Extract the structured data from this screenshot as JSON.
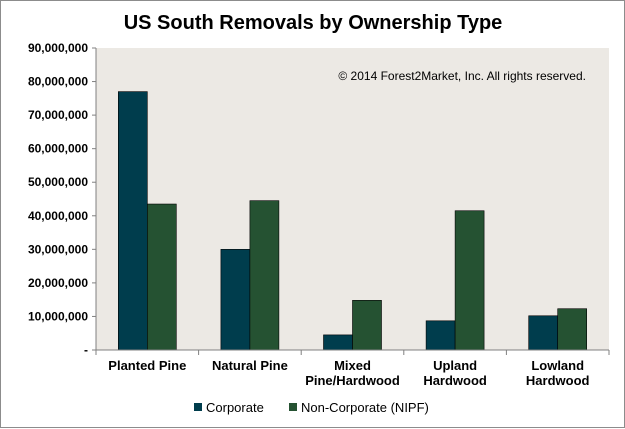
{
  "chart_data": {
    "type": "bar",
    "title": "US South Removals by Ownership Type",
    "annotation": "© 2014 Forest2Market, Inc. All rights reserved.",
    "categories": [
      [
        "Planted Pine"
      ],
      [
        "Natural Pine"
      ],
      [
        "Mixed",
        "Pine/Hardwood"
      ],
      [
        "Upland",
        "Hardwood"
      ],
      [
        "Lowland",
        "Hardwood"
      ]
    ],
    "series": [
      {
        "name": "Corporate",
        "color": "#003d4d",
        "values": [
          77000000,
          30000000,
          4500000,
          8700000,
          10200000
        ]
      },
      {
        "name": "Non-Corporate (NIPF)",
        "color": "#255232",
        "values": [
          43500000,
          44500000,
          14800000,
          41500000,
          12300000
        ]
      }
    ],
    "yticks": [
      "-",
      "10,000,000",
      "20,000,000",
      "30,000,000",
      "40,000,000",
      "50,000,000",
      "60,000,000",
      "70,000,000",
      "80,000,000",
      "90,000,000"
    ],
    "ylim": [
      0,
      90000000
    ],
    "plot_background": "#ece9e4",
    "legend_position": "bottom",
    "grid": false
  }
}
